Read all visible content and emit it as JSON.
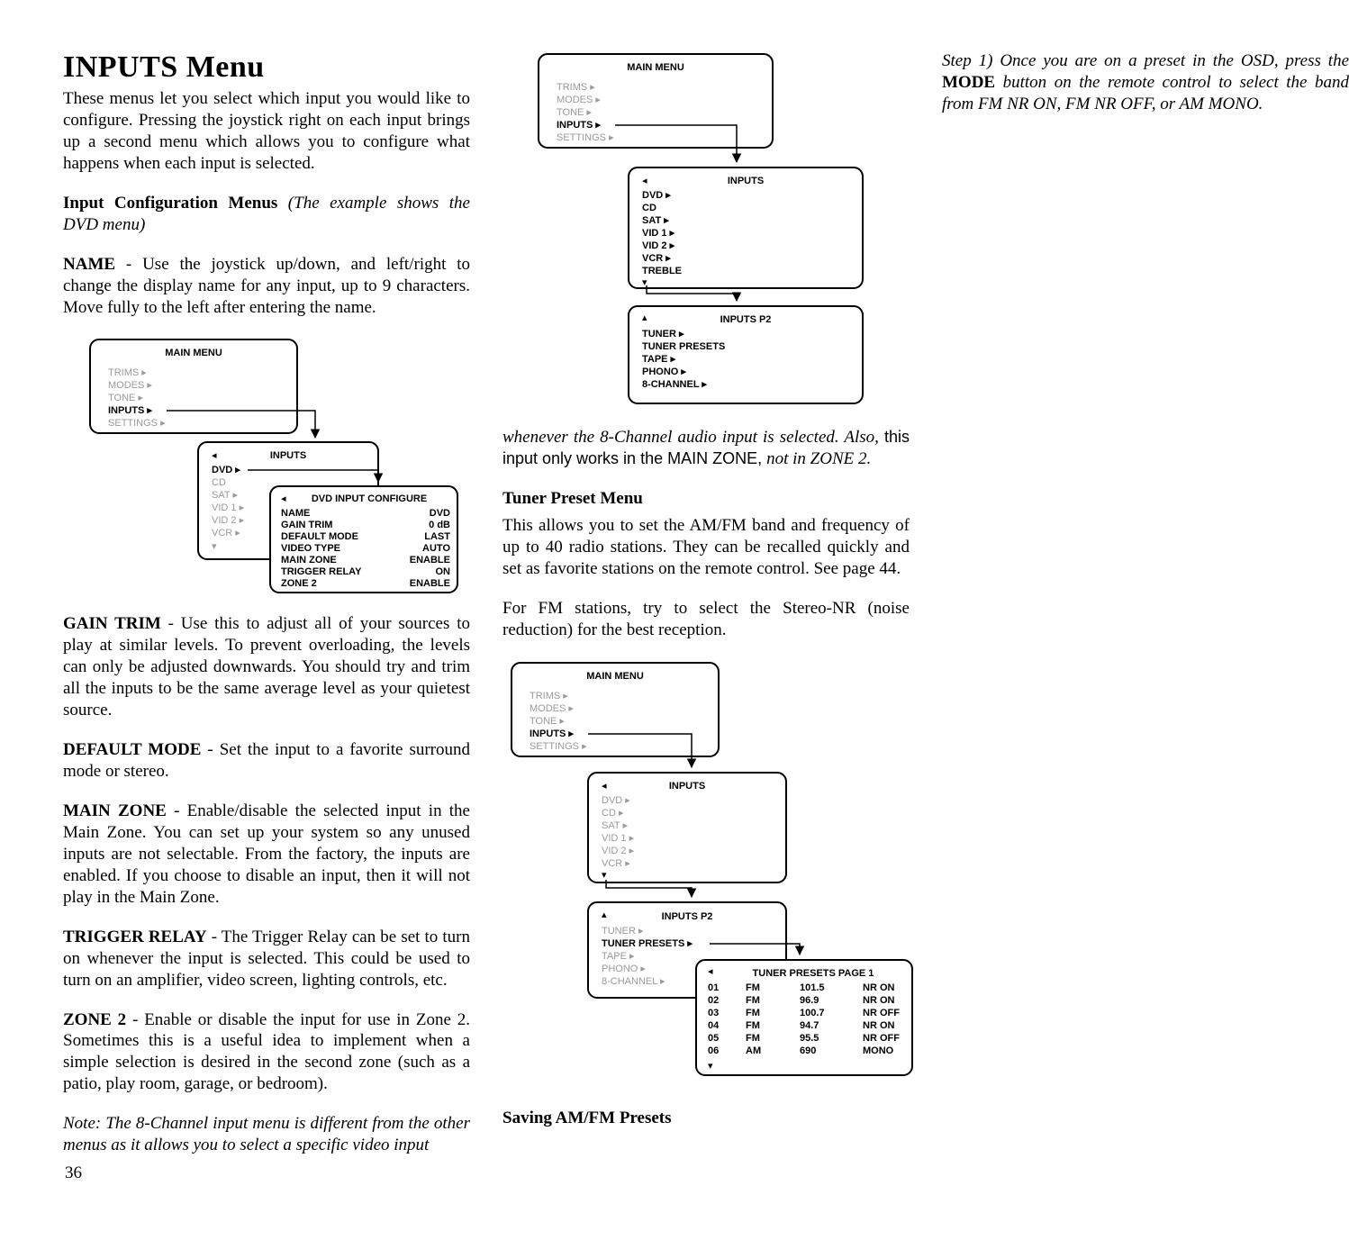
{
  "page_number": "36",
  "title": "INPUTS Menu",
  "intro": "These menus let you select which input you would like to configure. Pressing the joystick right on each input brings up a second menu which allows you to configure what happens when each input is selected.",
  "input_config_head": "Input Configuration Menus",
  "input_config_ital": " (The example shows the DVD menu)",
  "name_b": "NAME",
  "name_txt": " - Use the joystick up/down, and left/right to change the display name for any input, up to 9 characters. Move fully to the left after entering the name.",
  "gain_b": "GAIN TRIM",
  "gain_txt": " - Use this to adjust all of your sources to play at similar levels. To prevent overloading, the levels can only be adjusted downwards. You should try and trim all the inputs to be the same average level as your quietest source.",
  "default_b": "DEFAULT MODE",
  "default_txt": " - Set the input to a favorite surround mode or stereo.",
  "mainzone_b": "MAIN ZONE",
  "mainzone_txt": " - Enable/disable the selected input in the Main Zone. You can set up your system so any unused inputs are not selectable. From the factory, the inputs are enabled. If you choose to disable an input, then it will not play in the Main Zone.",
  "trigger_b": "TRIGGER RELAY",
  "trigger_txt": " - The Trigger Relay can be set to turn on whenever the input is selected. This could be used to turn on an amplifier, video screen, lighting controls, etc.",
  "zone2_b": "ZONE 2",
  "zone2_txt": " - Enable or disable the input for use in Zone 2. Sometimes this is a useful idea to implement when a simple selection is desired in the second zone (such as a patio, play room, garage, or bedroom).",
  "note_txt": "Note: The 8-Channel input menu is different from the other menus as it allows you to select a specific video input ",
  "whenever_ital": "whenever the 8-Channel audio input is selected. Also, ",
  "whenever_sans": "this input only works in the MAIN ZONE, ",
  "whenever_ital2": "not in ZONE 2.",
  "tuner_head": "Tuner Preset Menu",
  "tuner_p1": "This allows you to set the AM/FM band and frequency of up to 40 radio stations. They can be recalled quickly and set as favorite stations on the remote control. See page 44.",
  "tuner_p2": "For FM stations, try to select the Stereo-NR (noise reduction) for the best reception.",
  "saving_head": "Saving AM/FM Presets",
  "step1_a": "Step 1) Once you are on a preset in the OSD, press the ",
  "step1_b": "MODE",
  "step1_c": " button on the remote control to select the band from FM NR ON, FM NR OFF, or AM MONO.",
  "menu_labels": {
    "main_menu": "MAIN MENU",
    "trims": "TRIMS",
    "modes": "MODES",
    "tone": "TONE",
    "inputs": "INPUTS",
    "settings": "SETTINGS",
    "dvd": "DVD",
    "cd": "CD",
    "sat": "SAT",
    "vid1": "VID 1",
    "vid2": "VID 2",
    "vcr": "VCR",
    "treble": "TREBLE",
    "inputs_p2": "INPUTS P2",
    "tuner": "TUNER",
    "tuner_presets": "TUNER PRESETS",
    "tape": "TAPE",
    "phono": "PHONO",
    "channel8": "8-CHANNEL",
    "dvd_config": "DVD INPUT CONFIGURE",
    "name": "NAME",
    "gain_trim": "GAIN TRIM",
    "default_mode": "DEFAULT MODE",
    "video_type": "VIDEO TYPE",
    "main_zone": "MAIN ZONE",
    "trigger_relay": "TRIGGER RELAY",
    "zone2": "ZONE 2",
    "v_dvd": "DVD",
    "v_0db": "0 dB",
    "v_last": "LAST",
    "v_auto": "AUTO",
    "v_enable": "ENABLE",
    "v_on": "ON",
    "v_enable2": "ENABLE",
    "tuner_presets_p1": "TUNER PRESETS PAGE 1"
  },
  "presets": [
    {
      "n": "01",
      "band": "FM",
      "freq": "101.5",
      "nr": "NR ON"
    },
    {
      "n": "02",
      "band": "FM",
      "freq": "96.9",
      "nr": "NR ON"
    },
    {
      "n": "03",
      "band": "FM",
      "freq": "100.7",
      "nr": "NR OFF"
    },
    {
      "n": "04",
      "band": "FM",
      "freq": "94.7",
      "nr": "NR ON"
    },
    {
      "n": "05",
      "band": "FM",
      "freq": "95.5",
      "nr": "NR OFF"
    },
    {
      "n": "06",
      "band": "AM",
      "freq": "690",
      "nr": "MONO"
    }
  ],
  "style": {
    "stroke": "#000000",
    "stroke_w": 2,
    "corner_r": 10,
    "font": "Arial, Helvetica, sans-serif",
    "label_size": 11,
    "title_size": 11,
    "grey": "#9a9a9a"
  }
}
